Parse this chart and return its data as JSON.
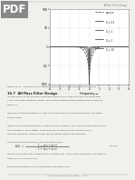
{
  "page_bg": "#f2f0ed",
  "pdf_watermark_text": "PDF",
  "pdf_watermark_bg": "#999999",
  "pdf_text_color": "#ffffff",
  "header_text": "All-Pass Filter Design",
  "header_color": "#777777",
  "figure_caption": "Figure 16-41   Comparison of Q Between Passive and Active Band-Rejection Filters",
  "section_heading": "16.7  All-Pass Filter Design",
  "body_text_lines": [
    "In comparison to the previously discussed filters, an all-pass filter has a constant gain",
    "across the entire frequency range, and a phase response that changes linearly with the",
    "frequency.",
    "",
    "Because of these properties, all-pass filters are used in phase compensation and signal",
    "delay circuits.",
    "",
    "Similar to the band-pass filters, all-pass circuits of higher order consist of cascaded first or",
    "second order all-pass stages. To develop the all-pass transfer function from a",
    "low-pass response, replace jω with the conjugate complex denominator.",
    "",
    "The general transfer function of an all-pass is then:"
  ],
  "formula_eq_num": "(16–52)",
  "body_text_after": [
    "with a₁ and b₁ being the coefficients of a partial filter. The all-pass coefficients are listed in",
    "Table 16–46 of Section 16.8.",
    "",
    "Expressing Equation 16-52 in magnitude and phase yields:"
  ],
  "footer_text": "Active Filter Design Techniques     16-41",
  "chart": {
    "xlim": [
      -4,
      4
    ],
    "ylim_log": [
      0.01,
      100
    ],
    "xticks": [
      -4,
      -3,
      -2,
      -1,
      0,
      1,
      2,
      3,
      4
    ],
    "yticks": [
      0.01,
      0.1,
      1,
      10,
      100
    ],
    "ytick_labels": [
      "0.01",
      "0.1",
      "1",
      "10",
      "100"
    ],
    "xlabel": "Frequency →",
    "legend_labels": [
      "passive",
      "Q = 0.5",
      "Q = 1",
      "Q = 2",
      "Q = 10"
    ],
    "legend_line_colors": [
      "#444444",
      "#444444",
      "#444444",
      "#444444",
      "#444444"
    ],
    "grid_color": "#cccccc",
    "chart_bg": "#ffffff",
    "chart_border": "#888888"
  }
}
